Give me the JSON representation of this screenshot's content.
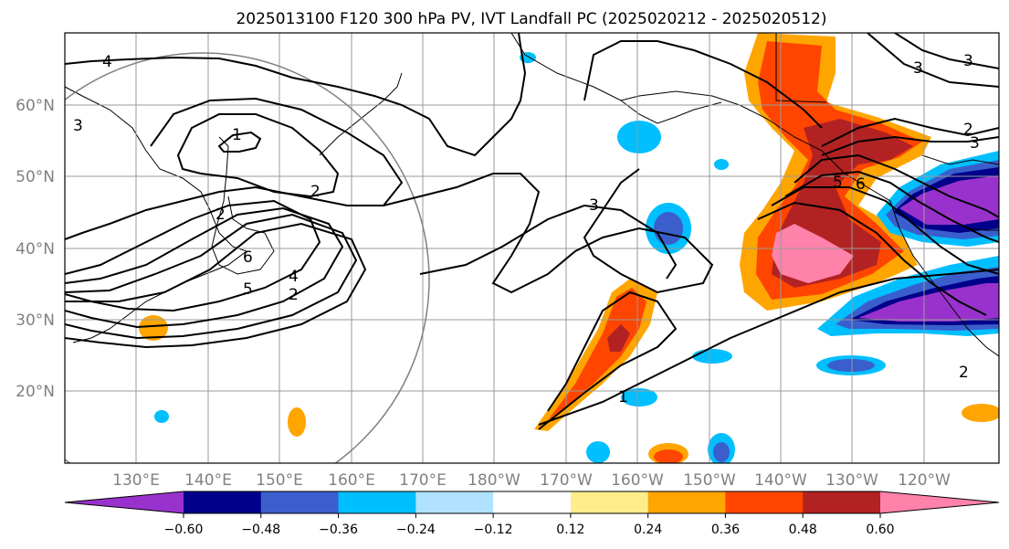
{
  "title": "2025013100 F120 300 hPa PV, IVT Landfall PC (2025020212 - 2025020512)",
  "lat_labels": [
    "20°N",
    "30°N",
    "40°N",
    "50°N",
    "60°N"
  ],
  "lon_labels": [
    "130°E",
    "140°E",
    "150°E",
    "160°E",
    "170°E",
    "180°W",
    "170°W",
    "160°W",
    "150°W",
    "140°W",
    "130°W",
    "120°W"
  ],
  "colorbar": {
    "tick_labels": [
      "−0.60",
      "−0.48",
      "−0.36",
      "−0.24",
      "−0.12",
      "0.12",
      "0.24",
      "0.36",
      "0.48",
      "0.60"
    ],
    "colors": [
      "#9932CC",
      "#00008B",
      "#3A5FCD",
      "#00BFFF",
      "#B0E2FF",
      "#FFFFFF",
      "#FFEC8B",
      "#FFA500",
      "#FF4500",
      "#B22222",
      "#FF82AB"
    ]
  },
  "contour_labels": [
    "4",
    "1",
    "2",
    "3",
    "2",
    "6",
    "5",
    "4",
    "2",
    "3",
    "5",
    "6",
    "2",
    "3",
    "1",
    "2",
    "3",
    "3"
  ]
}
